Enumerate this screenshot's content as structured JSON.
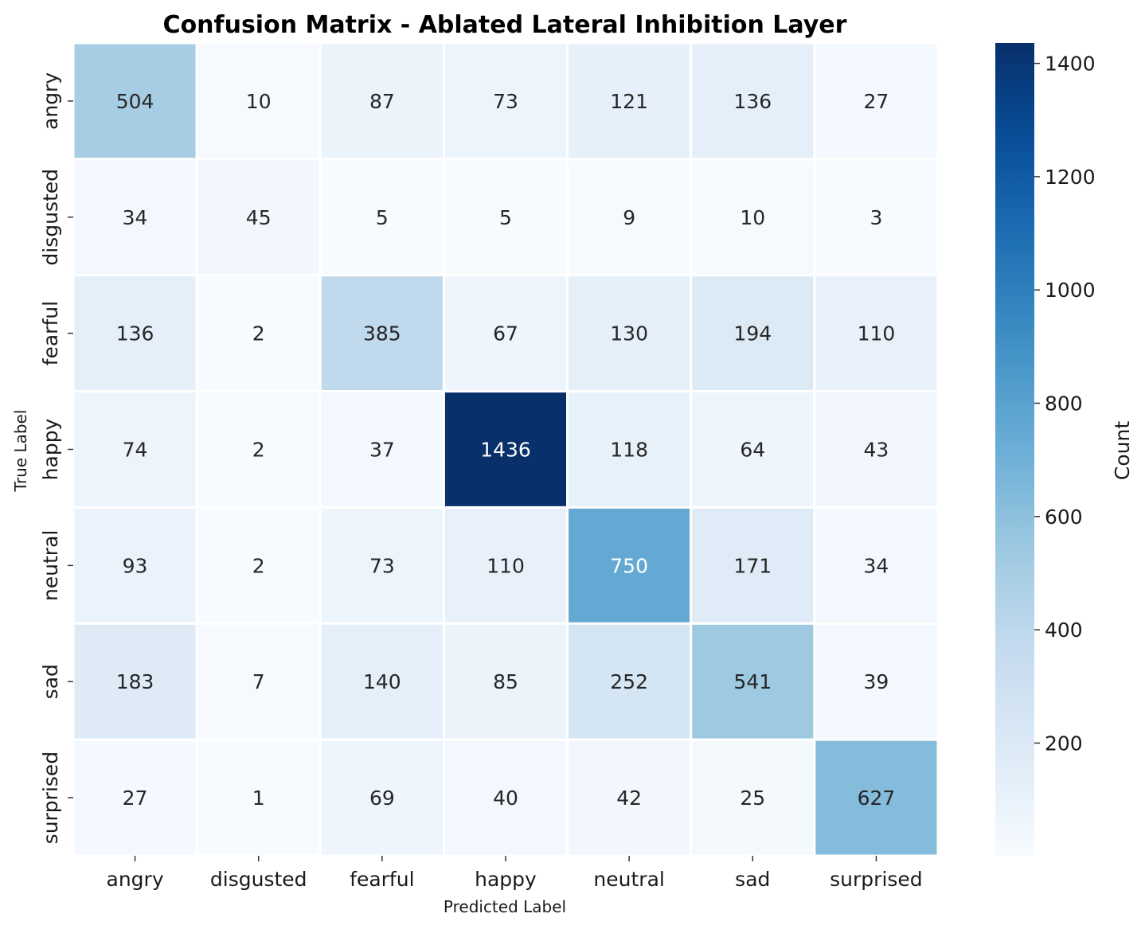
{
  "chart_data": {
    "type": "heatmap",
    "title": "Confusion Matrix - Ablated Lateral Inhibition Layer",
    "xlabel": "Predicted Label",
    "ylabel": "True Label",
    "x_categories": [
      "angry",
      "disgusted",
      "fearful",
      "happy",
      "neutral",
      "sad",
      "surprised"
    ],
    "y_categories": [
      "angry",
      "disgusted",
      "fearful",
      "happy",
      "neutral",
      "sad",
      "surprised"
    ],
    "values": [
      [
        504,
        10,
        87,
        73,
        121,
        136,
        27
      ],
      [
        34,
        45,
        5,
        5,
        9,
        10,
        3
      ],
      [
        136,
        2,
        385,
        67,
        130,
        194,
        110
      ],
      [
        74,
        2,
        37,
        1436,
        118,
        64,
        43
      ],
      [
        93,
        2,
        73,
        110,
        750,
        171,
        34
      ],
      [
        183,
        7,
        140,
        85,
        252,
        541,
        39
      ],
      [
        27,
        1,
        69,
        40,
        42,
        25,
        627
      ]
    ],
    "colormap": "Blues",
    "colorbar": {
      "label": "Count",
      "range": [
        1,
        1436
      ],
      "ticks": [
        200,
        400,
        600,
        800,
        1000,
        1200,
        1400
      ]
    },
    "cell_border_color": "#ffffff",
    "text_color_dark": "#262626",
    "text_color_light": "#ffffff"
  }
}
